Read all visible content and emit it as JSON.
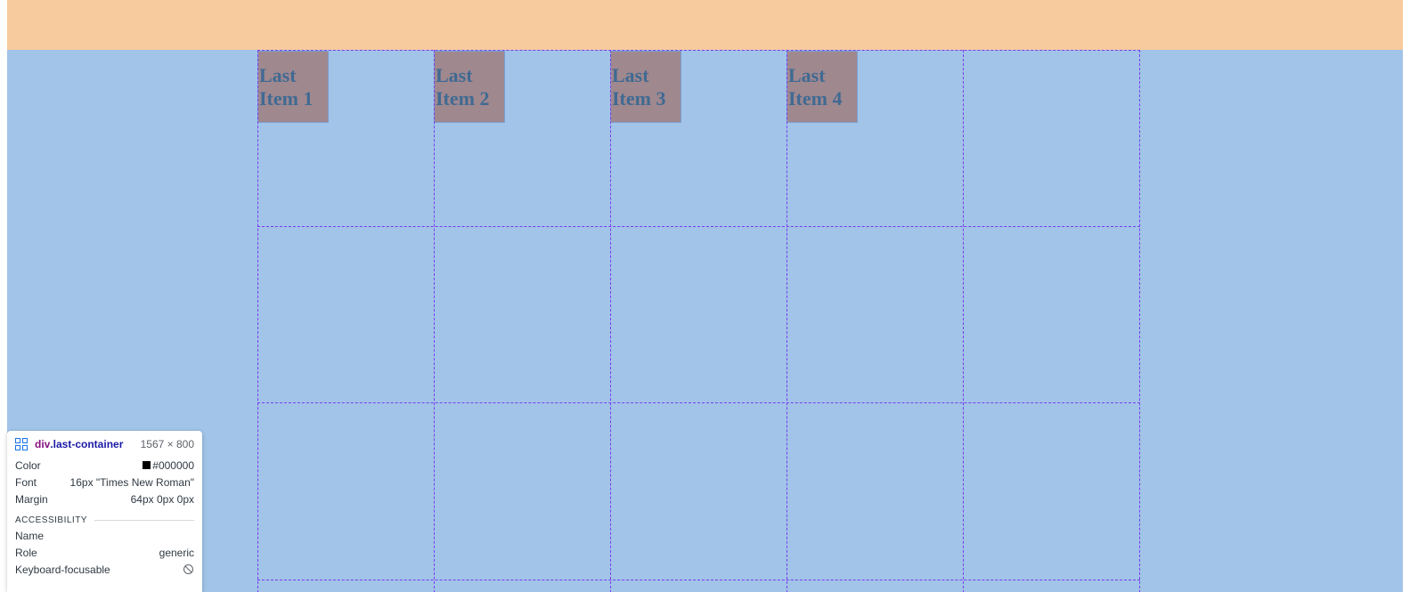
{
  "colors": {
    "page_bg": "#a1c4e8",
    "margin_highlight": "#f7cb9d",
    "item_bg": "#a0888f",
    "item_text": "#3f6a92",
    "grid_line": "#7b3cf0"
  },
  "items": [
    {
      "line1": "Last",
      "line2": "Item 1"
    },
    {
      "line1": "Last",
      "line2": "Item 2"
    },
    {
      "line1": "Last",
      "line2": "Item 3"
    },
    {
      "line1": "Last",
      "line2": "Item 4"
    }
  ],
  "inspector": {
    "icon": "grid-icon",
    "tag": "div",
    "class_name": ".last-container",
    "size": "1567 × 800",
    "color_label": "Color",
    "color_value": "#000000",
    "font_label": "Font",
    "font_value": "16px \"Times New Roman\"",
    "margin_label": "Margin",
    "margin_value": "64px 0px 0px",
    "accessibility_heading": "ACCESSIBILITY",
    "name_label": "Name",
    "name_value": "",
    "role_label": "Role",
    "role_value": "generic",
    "focusable_label": "Keyboard-focusable",
    "focusable_icon": "not-allowed-icon"
  }
}
